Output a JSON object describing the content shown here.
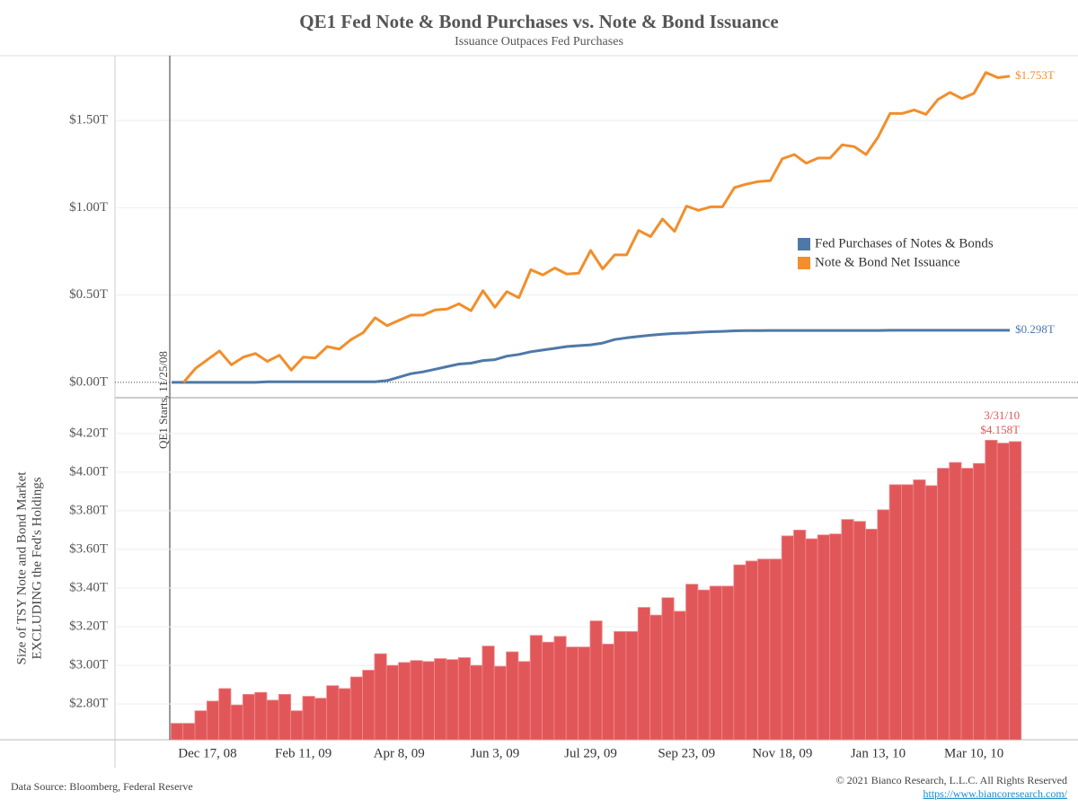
{
  "title": "QE1 Fed Note & Bond Purchases vs. Note & Bond Issuance",
  "subtitle": "Issuance Outpaces Fed Purchases",
  "footer": {
    "source": "Data Source: Bloomberg, Federal Reserve",
    "copyright": "© 2021 Bianco Research, L.L.C. All Rights Reserved",
    "link": "https://www.biancoresearch.com/"
  },
  "chart_data": [
    {
      "type": "line",
      "annotation": "QE1 Starts, 11/25/08",
      "legend": "center right",
      "grid": true,
      "ylim": [
        -0.088,
        1.871
      ],
      "yticks": [
        {
          "value": 0,
          "label": "$0.00T"
        },
        {
          "value": 0.5,
          "label": "$0.50T"
        },
        {
          "value": 1.0,
          "label": "$1.00T"
        },
        {
          "value": 1.5,
          "label": "$1.50T"
        }
      ],
      "series": [
        {
          "name": "Fed Purchases of Notes & Bonds",
          "color": "#4e79a7",
          "values": [
            0,
            0,
            0,
            0,
            0,
            0,
            0,
            0,
            0.003,
            0.003,
            0.003,
            0.003,
            0.003,
            0.003,
            0.003,
            0.003,
            0.003,
            0.003,
            0.01,
            0.03,
            0.05,
            0.06,
            0.075,
            0.09,
            0.105,
            0.11,
            0.125,
            0.13,
            0.15,
            0.16,
            0.175,
            0.185,
            0.195,
            0.205,
            0.21,
            0.215,
            0.225,
            0.245,
            0.255,
            0.263,
            0.27,
            0.276,
            0.28,
            0.282,
            0.287,
            0.29,
            0.292,
            0.295,
            0.296,
            0.296,
            0.297,
            0.297,
            0.297,
            0.297,
            0.297,
            0.297,
            0.297,
            0.297,
            0.297,
            0.297,
            0.298,
            0.298,
            0.298,
            0.298,
            0.298,
            0.298,
            0.298,
            0.298,
            0.298,
            0.298,
            0.298
          ],
          "value_labels": [
            null,
            null,
            null,
            null,
            null,
            null,
            null,
            null,
            null,
            null,
            null,
            null,
            null,
            null,
            null,
            null,
            null,
            null,
            null,
            null,
            null,
            null,
            null,
            null,
            null,
            null,
            null,
            null,
            null,
            null,
            null,
            null,
            null,
            null,
            null,
            null,
            null,
            null,
            null,
            null,
            null,
            null,
            null,
            null,
            null,
            null,
            null,
            null,
            null,
            null,
            null,
            null,
            null,
            null,
            null,
            null,
            null,
            null,
            null,
            null,
            null,
            null,
            null,
            null,
            null,
            null,
            null,
            null,
            null,
            null,
            "$0.298T"
          ]
        },
        {
          "name": "Note & Bond Net Issuance",
          "color": "#f28e2b",
          "values": [
            null,
            0,
            0.08,
            0.13,
            0.18,
            0.1,
            0.145,
            0.165,
            0.12,
            0.155,
            0.07,
            0.145,
            0.14,
            0.205,
            0.19,
            0.245,
            0.285,
            0.37,
            0.325,
            0.355,
            0.385,
            0.385,
            0.415,
            0.42,
            0.45,
            0.41,
            0.525,
            0.43,
            0.52,
            0.485,
            0.645,
            0.615,
            0.655,
            0.62,
            0.625,
            0.755,
            0.65,
            0.73,
            0.73,
            0.87,
            0.835,
            0.935,
            0.865,
            1.01,
            0.985,
            1.005,
            1.005,
            1.115,
            1.135,
            1.15,
            1.155,
            1.28,
            1.305,
            1.255,
            1.285,
            1.285,
            1.36,
            1.35,
            1.305,
            1.405,
            1.54,
            1.54,
            1.56,
            1.535,
            1.62,
            1.66,
            1.625,
            1.655,
            1.775,
            1.745,
            1.753
          ],
          "value_labels": [
            null,
            null,
            null,
            null,
            null,
            null,
            null,
            null,
            null,
            null,
            null,
            null,
            null,
            null,
            null,
            null,
            null,
            null,
            null,
            null,
            null,
            null,
            null,
            null,
            null,
            null,
            null,
            null,
            null,
            null,
            null,
            null,
            null,
            null,
            null,
            null,
            null,
            null,
            null,
            null,
            null,
            null,
            null,
            null,
            null,
            null,
            null,
            null,
            null,
            null,
            null,
            null,
            null,
            null,
            null,
            null,
            null,
            null,
            null,
            null,
            null,
            null,
            null,
            null,
            null,
            null,
            null,
            null,
            null,
            null,
            "$1.753T"
          ]
        }
      ]
    },
    {
      "type": "bar",
      "color": "#e15759",
      "grid": true,
      "annotation": "3/31/10",
      "ylabel": [
        "Size of TSY Note and Bond Market",
        "EXCLUDING the Fed's Holdings"
      ],
      "ylim": [
        2.615,
        4.385
      ],
      "yticks": [
        {
          "value": 2.8,
          "label": "$2.80T"
        },
        {
          "value": 3.0,
          "label": "$3.00T"
        },
        {
          "value": 3.2,
          "label": "$3.20T"
        },
        {
          "value": 3.4,
          "label": "$3.40T"
        },
        {
          "value": 3.6,
          "label": "$3.60T"
        },
        {
          "value": 3.8,
          "label": "$3.80T"
        },
        {
          "value": 4.0,
          "label": "$4.00T"
        },
        {
          "value": 4.2,
          "label": "$4.20T"
        }
      ],
      "categories": [
        null,
        null,
        null,
        "Dec 17, 08",
        null,
        null,
        null,
        null,
        null,
        null,
        null,
        "Feb 11, 09",
        null,
        null,
        null,
        null,
        null,
        null,
        null,
        "Apr 8, 09",
        null,
        null,
        null,
        null,
        null,
        null,
        null,
        "Jun 3, 09",
        null,
        null,
        null,
        null,
        null,
        null,
        null,
        "Jul 29, 09",
        null,
        null,
        null,
        null,
        null,
        null,
        null,
        "Sep 23, 09",
        null,
        null,
        null,
        null,
        null,
        null,
        null,
        "Nov 18, 09",
        null,
        null,
        null,
        null,
        null,
        null,
        null,
        "Jan 13, 10",
        null,
        null,
        null,
        null,
        null,
        null,
        null,
        "Mar 10, 10",
        null,
        null,
        null
      ],
      "values": [
        2.7,
        2.7,
        2.765,
        2.815,
        2.88,
        2.795,
        2.85,
        2.86,
        2.82,
        2.85,
        2.765,
        2.84,
        2.83,
        2.895,
        2.88,
        2.94,
        2.975,
        3.06,
        3.0,
        3.015,
        3.025,
        3.02,
        3.035,
        3.03,
        3.04,
        3.0,
        3.1,
        2.995,
        3.07,
        3.02,
        3.155,
        3.12,
        3.15,
        3.095,
        3.095,
        3.23,
        3.11,
        3.175,
        3.175,
        3.3,
        3.26,
        3.35,
        3.28,
        3.42,
        3.39,
        3.41,
        3.41,
        3.52,
        3.54,
        3.55,
        3.55,
        3.67,
        3.7,
        3.655,
        3.675,
        3.68,
        3.755,
        3.745,
        3.705,
        3.805,
        3.935,
        3.935,
        3.96,
        3.93,
        4.02,
        4.05,
        4.02,
        4.045,
        4.165,
        4.15,
        4.158
      ],
      "value_labels": [
        null,
        null,
        null,
        null,
        null,
        null,
        null,
        null,
        null,
        null,
        null,
        null,
        null,
        null,
        null,
        null,
        null,
        null,
        null,
        null,
        null,
        null,
        null,
        null,
        null,
        null,
        null,
        null,
        null,
        null,
        null,
        null,
        null,
        null,
        null,
        null,
        null,
        null,
        null,
        null,
        null,
        null,
        null,
        null,
        null,
        null,
        null,
        null,
        null,
        null,
        null,
        null,
        null,
        null,
        null,
        null,
        null,
        null,
        null,
        null,
        null,
        null,
        null,
        null,
        null,
        null,
        null,
        null,
        null,
        null,
        "$4.158T"
      ]
    }
  ]
}
